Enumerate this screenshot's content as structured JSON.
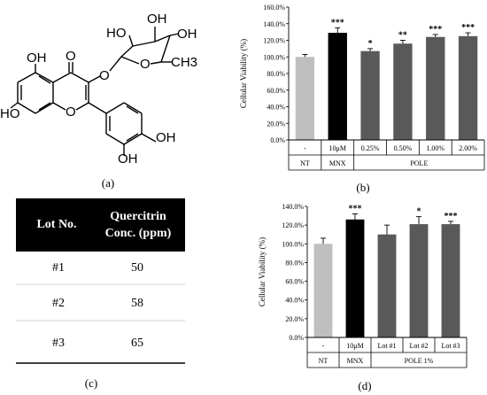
{
  "structure": {
    "labels": [
      "HO",
      "OH",
      "OH",
      "O",
      "CH3",
      "OH",
      "O",
      "O",
      "HO",
      "O",
      "OH",
      "OH"
    ]
  },
  "panel_labels": {
    "a": "(a)",
    "b": "(b)",
    "c": "(c)",
    "d": "(d)"
  },
  "table": {
    "headers": [
      [
        "Lot No."
      ],
      [
        "Quercitrin",
        "Conc. (ppm)"
      ]
    ],
    "rows": [
      [
        "#1",
        "50"
      ],
      [
        "#2",
        "58"
      ],
      [
        "#3",
        "65"
      ]
    ],
    "header_bg": "#000000"
  },
  "chart_data": [
    {
      "type": "bar",
      "ylabel": "Cellular Viability (%)",
      "ylim": [
        0,
        160
      ],
      "yticks": [
        "0.0%",
        "20.0%",
        "40.0%",
        "60.0%",
        "80.0%",
        "100.0%",
        "120.0%",
        "140.0%",
        "160.0%"
      ],
      "categories": [
        "-",
        "10μM",
        "0.25%",
        "0.50%",
        "1.00%",
        "2.00%"
      ],
      "values": [
        100,
        129,
        107,
        116,
        124,
        125
      ],
      "errors": [
        3,
        6,
        3,
        4,
        3,
        4
      ],
      "significance": [
        "",
        "***",
        "*",
        "**",
        "***",
        "***"
      ],
      "bar_colors": [
        "#bfbfbf",
        "#000000",
        "#595959",
        "#595959",
        "#595959",
        "#595959"
      ],
      "groups": [
        {
          "label": "NT",
          "count": 1
        },
        {
          "label": "MNX",
          "count": 1
        },
        {
          "label": "POLE",
          "count": 4
        }
      ],
      "grid": false
    },
    {
      "type": "bar",
      "ylabel": "Cellular Viability (%)",
      "ylim": [
        0,
        140
      ],
      "yticks": [
        "0.0%",
        "20.0%",
        "40.0%",
        "60.0%",
        "80.0%",
        "100.0%",
        "120.0%",
        "140.0%"
      ],
      "categories": [
        "-",
        "10μM",
        "Lot #1",
        "Lot #2",
        "Lot #3"
      ],
      "values": [
        100,
        126,
        110,
        121,
        121
      ],
      "errors": [
        6,
        6,
        10,
        8,
        3
      ],
      "significance": [
        "",
        "***",
        "",
        "*",
        "***"
      ],
      "bar_colors": [
        "#bfbfbf",
        "#000000",
        "#595959",
        "#595959",
        "#595959"
      ],
      "groups": [
        {
          "label": "NT",
          "count": 1
        },
        {
          "label": "MNX",
          "count": 1
        },
        {
          "label": "POLE 1%",
          "count": 3
        }
      ],
      "grid": false
    }
  ]
}
